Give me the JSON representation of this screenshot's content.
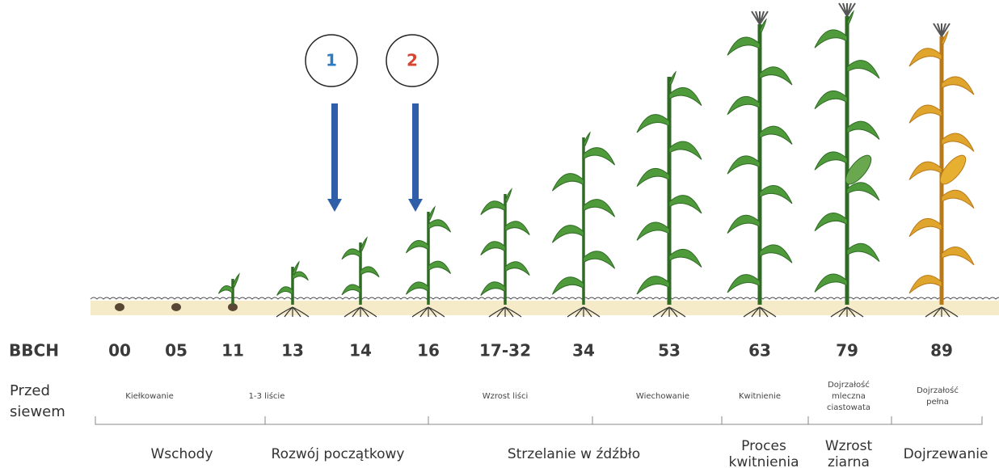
{
  "markers": [
    {
      "label": "1",
      "color": "#2e7bc4"
    },
    {
      "label": "2",
      "color": "#d9432f"
    }
  ],
  "axis_label": "BBCH",
  "stages": [
    "00",
    "05",
    "11",
    "13",
    "14",
    "16",
    "17-32",
    "34",
    "53",
    "63",
    "79",
    "89"
  ],
  "pre_sowing_lines": [
    "Przed",
    "siewem"
  ],
  "sub_stages": [
    {
      "lines": [
        "Kiełkowanie"
      ]
    },
    {
      "lines": [
        "1-3 liście"
      ]
    },
    {
      "lines": [
        "Wzrost liści"
      ]
    },
    {
      "lines": [
        "Wiechowanie"
      ]
    },
    {
      "lines": [
        "Kwitnienie"
      ]
    },
    {
      "lines": [
        "Dojrzałość",
        "mleczna",
        "ciastowata"
      ]
    },
    {
      "lines": [
        "Dojrzałość",
        "pełna"
      ]
    }
  ],
  "main_stages": [
    {
      "lines": [
        "Wschody"
      ]
    },
    {
      "lines": [
        "Rozwój początkowy"
      ]
    },
    {
      "lines": [
        "Strzelanie w źdźbło"
      ]
    },
    {
      "lines": [
        "Proces",
        "kwitnienia"
      ]
    },
    {
      "lines": [
        "Wzrost",
        "ziarna"
      ]
    },
    {
      "lines": [
        "Dojrzewanie"
      ]
    }
  ]
}
